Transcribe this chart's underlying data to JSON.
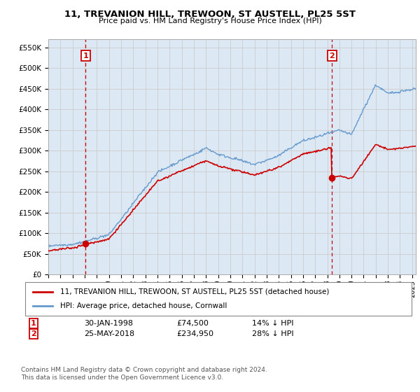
{
  "title": "11, TREVANION HILL, TREWOON, ST AUSTELL, PL25 5ST",
  "subtitle": "Price paid vs. HM Land Registry's House Price Index (HPI)",
  "ylabel_ticks": [
    "£0",
    "£50K",
    "£100K",
    "£150K",
    "£200K",
    "£250K",
    "£300K",
    "£350K",
    "£400K",
    "£450K",
    "£500K",
    "£550K"
  ],
  "ytick_values": [
    0,
    50000,
    100000,
    150000,
    200000,
    250000,
    300000,
    350000,
    400000,
    450000,
    500000,
    550000
  ],
  "ylim": [
    0,
    570000
  ],
  "xlim_start": 1995.0,
  "xlim_end": 2025.3,
  "purchase1_x": 1998.08,
  "purchase1_y": 74500,
  "purchase1_label": "1",
  "purchase1_date": "30-JAN-1998",
  "purchase1_price": "£74,500",
  "purchase1_pct": "14% ↓ HPI",
  "purchase2_x": 2018.4,
  "purchase2_y": 234950,
  "purchase2_label": "2",
  "purchase2_date": "25-MAY-2018",
  "purchase2_price": "£234,950",
  "purchase2_pct": "28% ↓ HPI",
  "line_color_property": "#cc0000",
  "line_color_hpi": "#6699cc",
  "vline_color": "#cc0000",
  "grid_color": "#cccccc",
  "plot_bg_color": "#dce9f5",
  "legend_label_property": "11, TREVANION HILL, TREWOON, ST AUSTELL, PL25 5ST (detached house)",
  "legend_label_hpi": "HPI: Average price, detached house, Cornwall",
  "footer": "Contains HM Land Registry data © Crown copyright and database right 2024.\nThis data is licensed under the Open Government Licence v3.0.",
  "background_color": "#ffffff"
}
